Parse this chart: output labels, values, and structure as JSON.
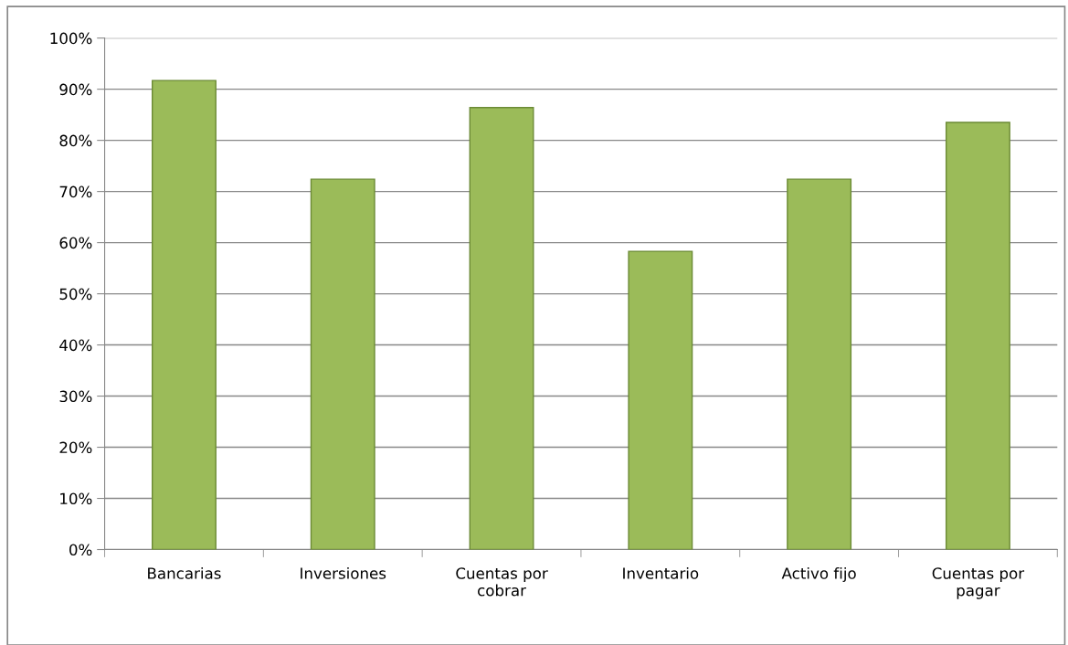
{
  "chart_data": {
    "type": "bar",
    "categories": [
      "Bancarias",
      "Inversiones",
      "Cuentas por\ncobrar",
      "Inventario",
      "Activo fijo",
      "Cuentas por\npagar"
    ],
    "values": [
      91.7,
      72.4,
      86.4,
      58.3,
      72.4,
      83.5
    ],
    "color": "#9bbb59",
    "ylim": [
      0,
      100
    ],
    "yticks": [
      {
        "value": 0,
        "label": "0%"
      },
      {
        "value": 10,
        "label": "10%"
      },
      {
        "value": 20,
        "label": "20%"
      },
      {
        "value": 30,
        "label": "30%"
      },
      {
        "value": 40,
        "label": "40%"
      },
      {
        "value": 50,
        "label": "50%"
      },
      {
        "value": 60,
        "label": "60%"
      },
      {
        "value": 70,
        "label": "70%"
      },
      {
        "value": 80,
        "label": "80%"
      },
      {
        "value": 90,
        "label": "90%"
      },
      {
        "value": 100,
        "label": "100%"
      }
    ],
    "grid": "y",
    "legend": false
  }
}
